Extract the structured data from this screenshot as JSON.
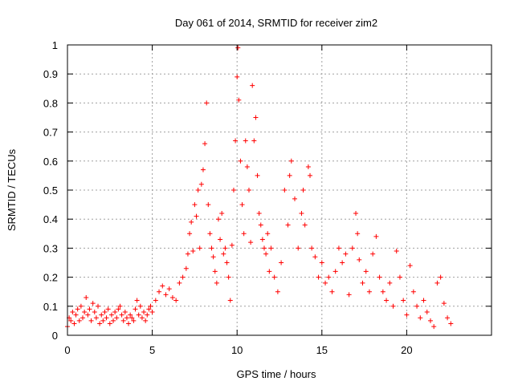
{
  "chart_data": {
    "type": "scatter",
    "title": "Day 061 of 2014, SRMTID for receiver zim2",
    "xlabel": "GPS time / hours",
    "ylabel": "SRMTID / TECUs",
    "xlim": [
      0,
      25
    ],
    "ylim": [
      0,
      1
    ],
    "xticks": [
      "0",
      "5",
      "10",
      "15",
      "20"
    ],
    "xtick_values": [
      0,
      5,
      10,
      15,
      20
    ],
    "yticks": [
      "0",
      "0.1",
      "0.2",
      "0.3",
      "0.4",
      "0.5",
      "0.6",
      "0.7",
      "0.8",
      "0.9",
      "1"
    ],
    "ytick_values": [
      0,
      0.1,
      0.2,
      0.3,
      0.4,
      0.5,
      0.6,
      0.7,
      0.8,
      0.9,
      1.0
    ],
    "grid": true,
    "marker": "+",
    "color": "#ff0000",
    "series": [
      {
        "name": "SRMTID",
        "points": [
          [
            0.0,
            0.03
          ],
          [
            0.1,
            0.06
          ],
          [
            0.2,
            0.05
          ],
          [
            0.3,
            0.08
          ],
          [
            0.4,
            0.04
          ],
          [
            0.5,
            0.07
          ],
          [
            0.6,
            0.09
          ],
          [
            0.7,
            0.05
          ],
          [
            0.8,
            0.1
          ],
          [
            0.9,
            0.06
          ],
          [
            1.0,
            0.08
          ],
          [
            1.1,
            0.13
          ],
          [
            1.2,
            0.07
          ],
          [
            1.3,
            0.09
          ],
          [
            1.4,
            0.05
          ],
          [
            1.5,
            0.11
          ],
          [
            1.6,
            0.08
          ],
          [
            1.7,
            0.06
          ],
          [
            1.8,
            0.1
          ],
          [
            1.9,
            0.04
          ],
          [
            2.0,
            0.07
          ],
          [
            2.1,
            0.05
          ],
          [
            2.2,
            0.08
          ],
          [
            2.3,
            0.06
          ],
          [
            2.4,
            0.09
          ],
          [
            2.5,
            0.04
          ],
          [
            2.6,
            0.07
          ],
          [
            2.7,
            0.05
          ],
          [
            2.8,
            0.08
          ],
          [
            2.9,
            0.06
          ],
          [
            3.0,
            0.09
          ],
          [
            3.1,
            0.1
          ],
          [
            3.2,
            0.07
          ],
          [
            3.3,
            0.05
          ],
          [
            3.4,
            0.08
          ],
          [
            3.5,
            0.06
          ],
          [
            3.6,
            0.04
          ],
          [
            3.7,
            0.07
          ],
          [
            3.8,
            0.06
          ],
          [
            3.9,
            0.05
          ],
          [
            4.0,
            0.09
          ],
          [
            4.1,
            0.12
          ],
          [
            4.2,
            0.07
          ],
          [
            4.3,
            0.1
          ],
          [
            4.4,
            0.06
          ],
          [
            4.5,
            0.08
          ],
          [
            4.6,
            0.05
          ],
          [
            4.7,
            0.07
          ],
          [
            4.8,
            0.09
          ],
          [
            4.9,
            0.1
          ],
          [
            5.0,
            0.08
          ],
          [
            5.2,
            0.12
          ],
          [
            5.4,
            0.15
          ],
          [
            5.6,
            0.17
          ],
          [
            5.8,
            0.14
          ],
          [
            6.0,
            0.16
          ],
          [
            6.2,
            0.13
          ],
          [
            6.4,
            0.12
          ],
          [
            6.6,
            0.18
          ],
          [
            6.8,
            0.2
          ],
          [
            7.0,
            0.23
          ],
          [
            7.1,
            0.28
          ],
          [
            7.2,
            0.35
          ],
          [
            7.3,
            0.39
          ],
          [
            7.4,
            0.29
          ],
          [
            7.5,
            0.45
          ],
          [
            7.6,
            0.41
          ],
          [
            7.7,
            0.5
          ],
          [
            7.8,
            0.3
          ],
          [
            7.9,
            0.52
          ],
          [
            8.0,
            0.57
          ],
          [
            8.1,
            0.66
          ],
          [
            8.2,
            0.8
          ],
          [
            8.3,
            0.45
          ],
          [
            8.4,
            0.35
          ],
          [
            8.5,
            0.3
          ],
          [
            8.6,
            0.27
          ],
          [
            8.7,
            0.22
          ],
          [
            8.8,
            0.18
          ],
          [
            8.9,
            0.4
          ],
          [
            9.0,
            0.33
          ],
          [
            9.1,
            0.42
          ],
          [
            9.2,
            0.28
          ],
          [
            9.3,
            0.3
          ],
          [
            9.4,
            0.25
          ],
          [
            9.5,
            0.2
          ],
          [
            9.6,
            0.12
          ],
          [
            9.7,
            0.31
          ],
          [
            9.8,
            0.5
          ],
          [
            9.9,
            0.67
          ],
          [
            10.0,
            0.89
          ],
          [
            10.05,
            0.99
          ],
          [
            10.1,
            0.81
          ],
          [
            10.2,
            0.6
          ],
          [
            10.3,
            0.45
          ],
          [
            10.4,
            0.35
          ],
          [
            10.5,
            0.67
          ],
          [
            10.6,
            0.58
          ],
          [
            10.7,
            0.5
          ],
          [
            10.8,
            0.32
          ],
          [
            10.9,
            0.86
          ],
          [
            11.0,
            0.67
          ],
          [
            11.1,
            0.75
          ],
          [
            11.2,
            0.55
          ],
          [
            11.3,
            0.42
          ],
          [
            11.4,
            0.38
          ],
          [
            11.5,
            0.33
          ],
          [
            11.6,
            0.3
          ],
          [
            11.7,
            0.28
          ],
          [
            11.8,
            0.35
          ],
          [
            11.9,
            0.22
          ],
          [
            12.0,
            0.3
          ],
          [
            12.2,
            0.2
          ],
          [
            12.4,
            0.15
          ],
          [
            12.6,
            0.25
          ],
          [
            12.8,
            0.5
          ],
          [
            13.0,
            0.38
          ],
          [
            13.1,
            0.55
          ],
          [
            13.2,
            0.6
          ],
          [
            13.4,
            0.47
          ],
          [
            13.6,
            0.3
          ],
          [
            13.8,
            0.42
          ],
          [
            13.9,
            0.5
          ],
          [
            14.0,
            0.38
          ],
          [
            14.2,
            0.58
          ],
          [
            14.3,
            0.55
          ],
          [
            14.4,
            0.3
          ],
          [
            14.6,
            0.27
          ],
          [
            14.8,
            0.2
          ],
          [
            15.0,
            0.25
          ],
          [
            15.2,
            0.18
          ],
          [
            15.4,
            0.2
          ],
          [
            15.6,
            0.15
          ],
          [
            15.8,
            0.22
          ],
          [
            16.0,
            0.3
          ],
          [
            16.2,
            0.25
          ],
          [
            16.4,
            0.28
          ],
          [
            16.6,
            0.14
          ],
          [
            16.8,
            0.3
          ],
          [
            17.0,
            0.42
          ],
          [
            17.1,
            0.35
          ],
          [
            17.2,
            0.26
          ],
          [
            17.4,
            0.18
          ],
          [
            17.6,
            0.22
          ],
          [
            17.8,
            0.15
          ],
          [
            18.0,
            0.28
          ],
          [
            18.2,
            0.34
          ],
          [
            18.4,
            0.2
          ],
          [
            18.6,
            0.15
          ],
          [
            18.8,
            0.12
          ],
          [
            19.0,
            0.18
          ],
          [
            19.2,
            0.1
          ],
          [
            19.4,
            0.29
          ],
          [
            19.6,
            0.2
          ],
          [
            19.8,
            0.12
          ],
          [
            20.0,
            0.07
          ],
          [
            20.2,
            0.24
          ],
          [
            20.4,
            0.15
          ],
          [
            20.6,
            0.1
          ],
          [
            20.8,
            0.06
          ],
          [
            21.0,
            0.12
          ],
          [
            21.2,
            0.08
          ],
          [
            21.4,
            0.05
          ],
          [
            21.6,
            0.03
          ],
          [
            21.8,
            0.18
          ],
          [
            22.0,
            0.2
          ],
          [
            22.2,
            0.11
          ],
          [
            22.4,
            0.06
          ],
          [
            22.6,
            0.04
          ]
        ]
      }
    ]
  }
}
